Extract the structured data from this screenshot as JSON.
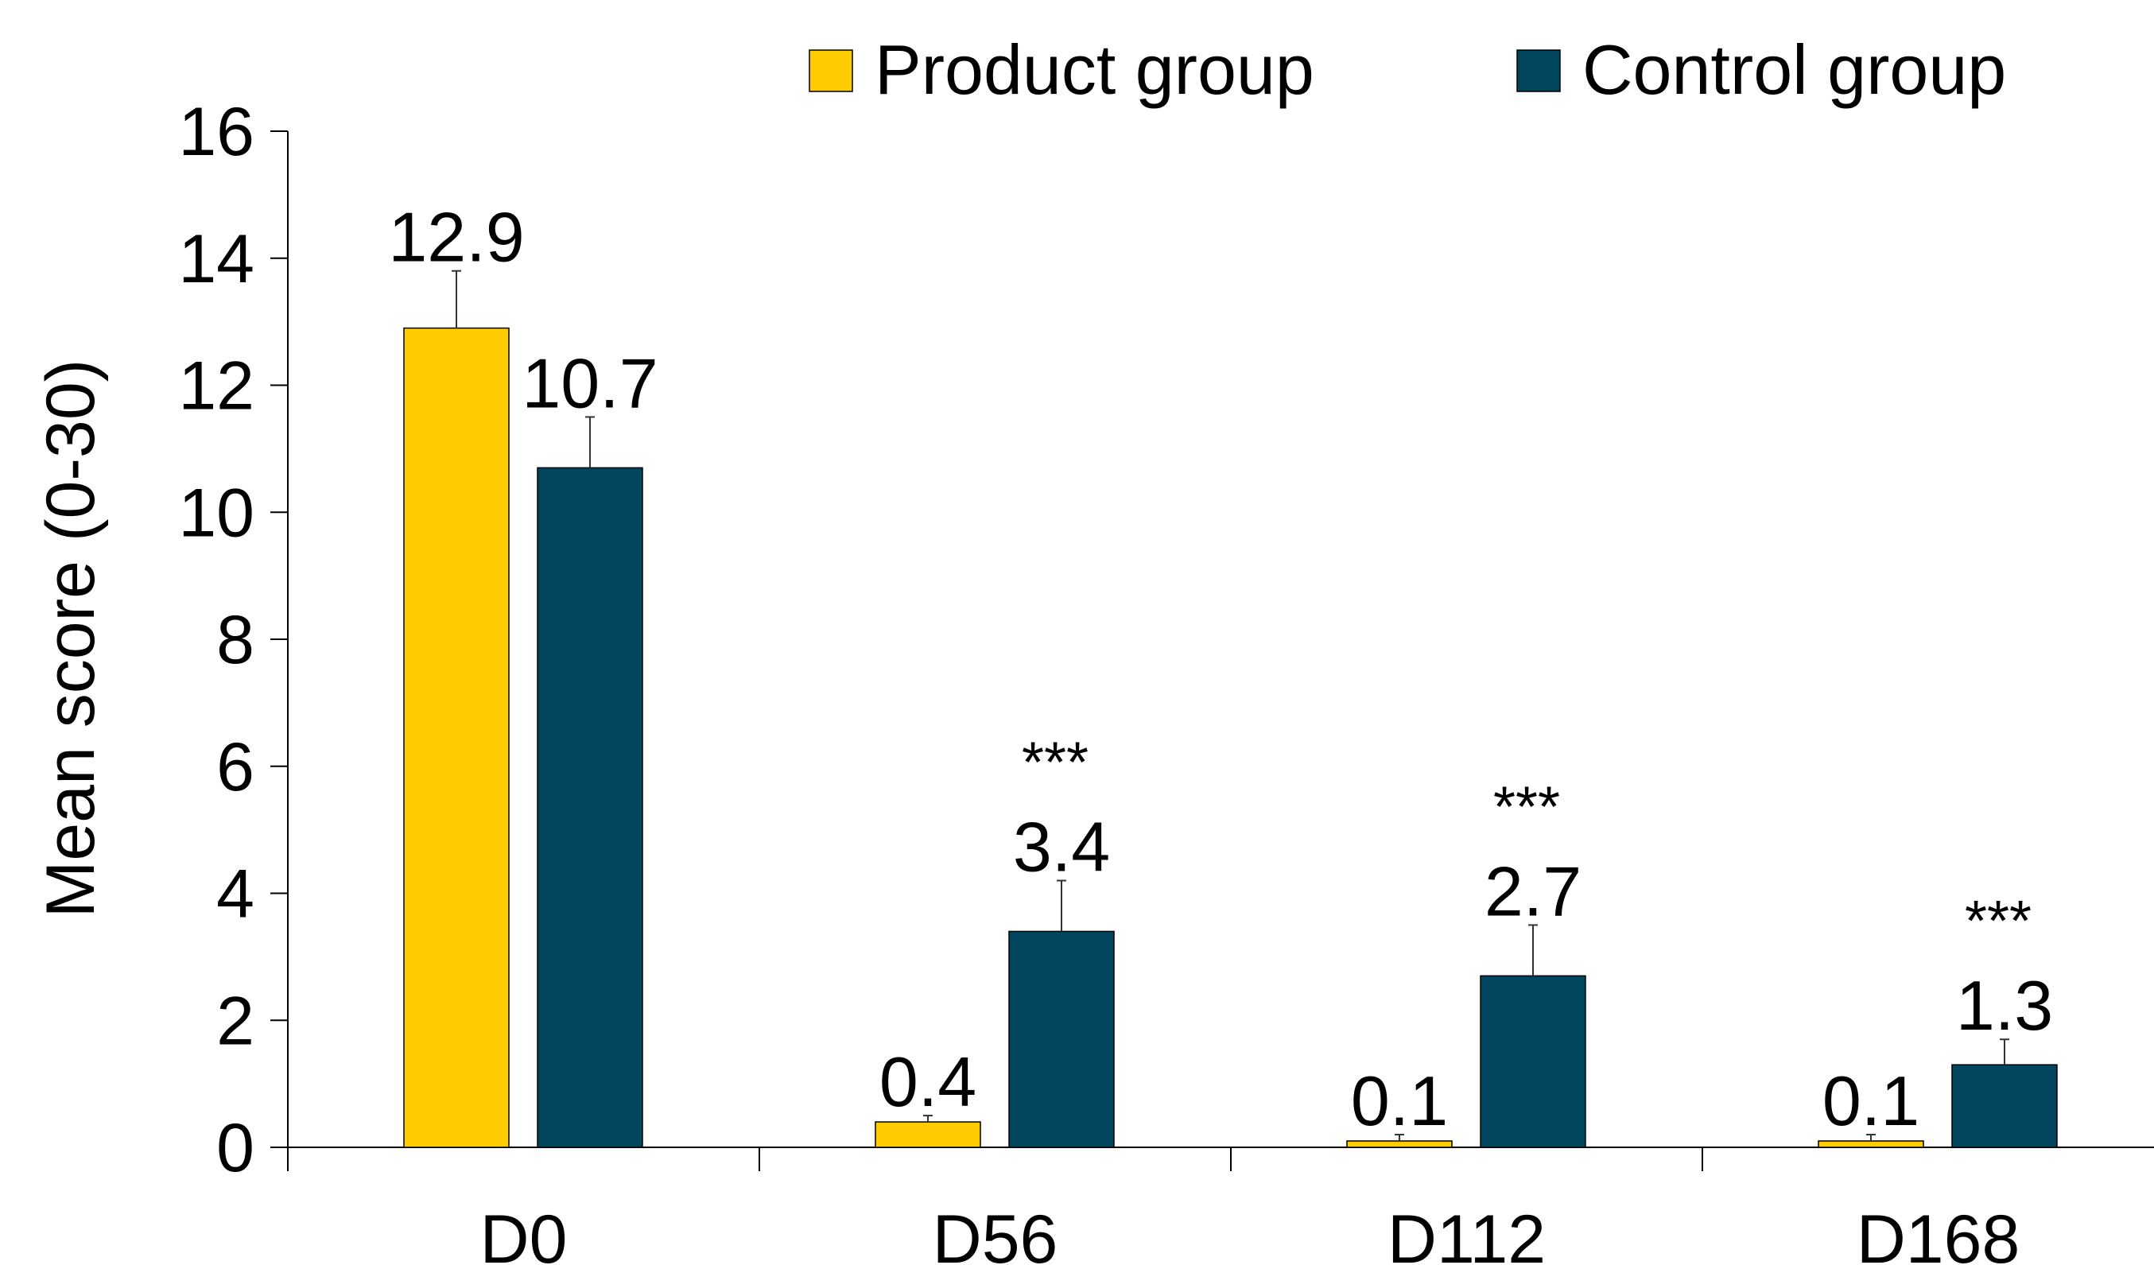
{
  "chart_data": {
    "type": "bar",
    "categories": [
      "D0",
      "D56",
      "D112",
      "D168"
    ],
    "series": [
      {
        "name": "Product group",
        "color": "#FFCC00",
        "values": [
          12.9,
          0.4,
          0.1,
          0.1
        ],
        "value_labels": [
          "12.9",
          "0.4",
          "0.1",
          "0.1"
        ],
        "error": [
          0.9,
          0.1,
          0.1,
          0.1
        ]
      },
      {
        "name": "Control group",
        "color": "#00465F",
        "values": [
          10.7,
          3.4,
          2.7,
          1.3
        ],
        "value_labels": [
          "10.7",
          "3.4",
          "2.7",
          "1.3"
        ],
        "error": [
          0.8,
          0.8,
          0.8,
          0.4
        ],
        "significance": [
          "",
          "***",
          "***",
          "***"
        ]
      }
    ],
    "title": "",
    "xlabel": "",
    "ylabel": "Mean score (0-30)",
    "ylim": [
      0,
      16
    ],
    "yticks": [
      0,
      2,
      4,
      6,
      8,
      10,
      12,
      14,
      16
    ],
    "grid": false,
    "legend_position": "top-right"
  }
}
